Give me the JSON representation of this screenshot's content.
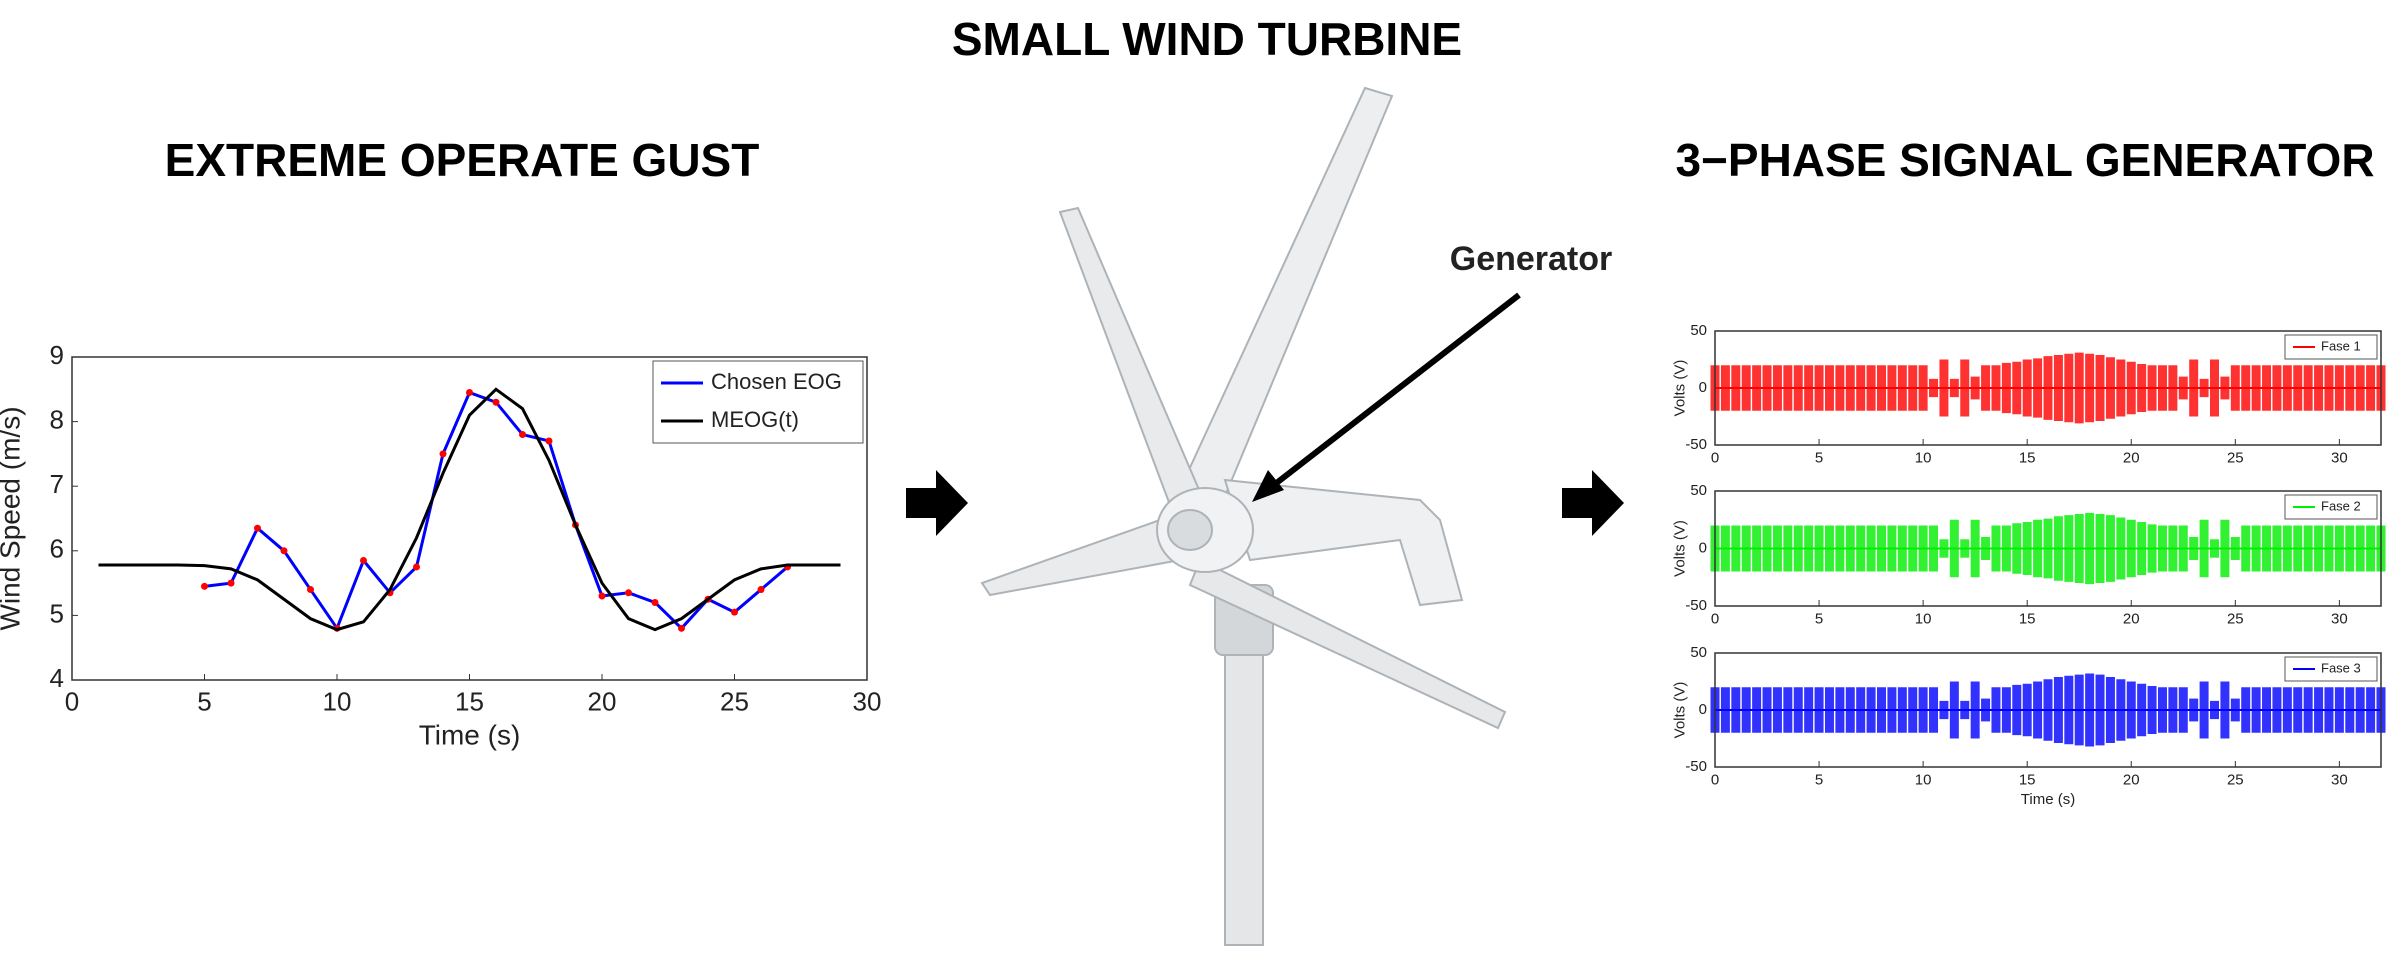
{
  "title": "SMALL WIND TURBINE",
  "left_heading": "EXTREME OPERATE GUST",
  "right_heading": "3−PHASE SIGNAL GENERATOR",
  "generator_label": "Generator",
  "chart_data": [
    {
      "type": "line",
      "xlabel": "Time (s)",
      "ylabel": "Wind Speed (m/s)",
      "xlim": [
        0,
        30
      ],
      "xticks": [
        0,
        5,
        10,
        15,
        20,
        25,
        30
      ],
      "ylim": [
        4,
        9
      ],
      "yticks": [
        4,
        5,
        6,
        7,
        8,
        9
      ],
      "legend": "upper right",
      "series": [
        {
          "name": "Chosen EOG",
          "color": "#0000ff",
          "marker_color": "#ff0000",
          "x": [
            5,
            6,
            7,
            8,
            9,
            10,
            11,
            12,
            13,
            14,
            15,
            16,
            17,
            18,
            19,
            20,
            21,
            22,
            23,
            24,
            25,
            26,
            27
          ],
          "values": [
            5.45,
            5.5,
            6.35,
            6.0,
            5.4,
            4.8,
            5.85,
            5.35,
            5.75,
            7.5,
            8.45,
            8.3,
            7.8,
            7.7,
            6.4,
            5.3,
            5.35,
            5.2,
            4.8,
            5.25,
            5.05,
            5.4,
            5.75
          ]
        },
        {
          "name": "MEOG(t)",
          "color": "#000000",
          "x": [
            1,
            2,
            3,
            4,
            5,
            6,
            7,
            8,
            9,
            10,
            11,
            12,
            13,
            14,
            15,
            16,
            17,
            18,
            19,
            20,
            21,
            22,
            23,
            24,
            25,
            26,
            27,
            28,
            29
          ],
          "values": [
            5.78,
            5.78,
            5.78,
            5.78,
            5.77,
            5.72,
            5.55,
            5.25,
            4.95,
            4.78,
            4.9,
            5.4,
            6.2,
            7.2,
            8.1,
            8.5,
            8.2,
            7.4,
            6.4,
            5.5,
            4.95,
            4.78,
            4.95,
            5.25,
            5.55,
            5.72,
            5.78,
            5.78,
            5.78
          ]
        }
      ]
    },
    {
      "type": "envelope",
      "ylabel": "Volts (V)",
      "xlim": [
        0,
        32
      ],
      "xticks": [
        0,
        5,
        10,
        15,
        20,
        25,
        30
      ],
      "ylim": [
        -50,
        50
      ],
      "yticks": [
        -50,
        0,
        50
      ],
      "legend": "upper right",
      "x": [
        0,
        0.5,
        1,
        1.5,
        2,
        2.5,
        3,
        3.5,
        4,
        4.5,
        5,
        5.5,
        6,
        6.5,
        7,
        7.5,
        8,
        8.5,
        9,
        9.5,
        10,
        10.5,
        11,
        11.5,
        12,
        12.5,
        13,
        13.5,
        14,
        14.5,
        15,
        15.5,
        16,
        16.5,
        17,
        17.5,
        18,
        18.5,
        19,
        19.5,
        20,
        20.5,
        21,
        21.5,
        22,
        22.5,
        23,
        23.5,
        24,
        24.5,
        25,
        25.5,
        26,
        26.5,
        27,
        27.5,
        28,
        28.5,
        29,
        29.5,
        30,
        30.5,
        31,
        31.5,
        32
      ],
      "series": [
        {
          "name": "Fase 1",
          "color": "#ff0000",
          "values": [
            20,
            20,
            20,
            20,
            20,
            20,
            20,
            20,
            20,
            20,
            20,
            20,
            20,
            20,
            20,
            20,
            20,
            20,
            20,
            20,
            20,
            8,
            25,
            8,
            25,
            10,
            20,
            20,
            22,
            23,
            25,
            26,
            28,
            29,
            30,
            31,
            30,
            29,
            27,
            25,
            23,
            21,
            20,
            20,
            20,
            10,
            25,
            8,
            25,
            10,
            20,
            20,
            20,
            20,
            20,
            20,
            20,
            20,
            20,
            20,
            20,
            20,
            20,
            20,
            20
          ]
        }
      ]
    },
    {
      "type": "envelope",
      "ylabel": "Volts (V)",
      "xlim": [
        0,
        32
      ],
      "xticks": [
        0,
        5,
        10,
        15,
        20,
        25,
        30
      ],
      "ylim": [
        -50,
        50
      ],
      "yticks": [
        -50,
        0,
        50
      ],
      "legend": "upper right",
      "x": [
        0,
        0.5,
        1,
        1.5,
        2,
        2.5,
        3,
        3.5,
        4,
        4.5,
        5,
        5.5,
        6,
        6.5,
        7,
        7.5,
        8,
        8.5,
        9,
        9.5,
        10,
        10.5,
        11,
        11.5,
        12,
        12.5,
        13,
        13.5,
        14,
        14.5,
        15,
        15.5,
        16,
        16.5,
        17,
        17.5,
        18,
        18.5,
        19,
        19.5,
        20,
        20.5,
        21,
        21.5,
        22,
        22.5,
        23,
        23.5,
        24,
        24.5,
        25,
        25.5,
        26,
        26.5,
        27,
        27.5,
        28,
        28.5,
        29,
        29.5,
        30,
        30.5,
        31,
        31.5,
        32
      ],
      "series": [
        {
          "name": "Fase 2",
          "color": "#00ee00",
          "values": [
            20,
            20,
            20,
            20,
            20,
            20,
            20,
            20,
            20,
            20,
            20,
            20,
            20,
            20,
            20,
            20,
            20,
            20,
            20,
            20,
            20,
            20,
            8,
            25,
            8,
            25,
            10,
            20,
            20,
            22,
            23,
            25,
            26,
            28,
            29,
            30,
            31,
            30,
            29,
            27,
            25,
            23,
            21,
            20,
            20,
            20,
            10,
            25,
            8,
            25,
            10,
            20,
            20,
            20,
            20,
            20,
            20,
            20,
            20,
            20,
            20,
            20,
            20,
            20,
            20
          ]
        }
      ]
    },
    {
      "type": "envelope",
      "xlabel": "Time (s)",
      "ylabel": "Volts (V)",
      "xlim": [
        0,
        32
      ],
      "xticks": [
        0,
        5,
        10,
        15,
        20,
        25,
        30
      ],
      "ylim": [
        -50,
        50
      ],
      "yticks": [
        -50,
        0,
        50
      ],
      "legend": "upper right",
      "x": [
        0,
        0.5,
        1,
        1.5,
        2,
        2.5,
        3,
        3.5,
        4,
        4.5,
        5,
        5.5,
        6,
        6.5,
        7,
        7.5,
        8,
        8.5,
        9,
        9.5,
        10,
        10.5,
        11,
        11.5,
        12,
        12.5,
        13,
        13.5,
        14,
        14.5,
        15,
        15.5,
        16,
        16.5,
        17,
        17.5,
        18,
        18.5,
        19,
        19.5,
        20,
        20.5,
        21,
        21.5,
        22,
        22.5,
        23,
        23.5,
        24,
        24.5,
        25,
        25.5,
        26,
        26.5,
        27,
        27.5,
        28,
        28.5,
        29,
        29.5,
        30,
        30.5,
        31,
        31.5,
        32
      ],
      "series": [
        {
          "name": "Fase 3",
          "color": "#0000ff",
          "values": [
            20,
            20,
            20,
            20,
            20,
            20,
            20,
            20,
            20,
            20,
            20,
            20,
            20,
            20,
            20,
            20,
            20,
            20,
            20,
            20,
            20,
            20,
            8,
            25,
            8,
            25,
            10,
            20,
            20,
            22,
            23,
            25,
            27,
            29,
            30,
            31,
            32,
            31,
            29,
            27,
            25,
            23,
            21,
            20,
            20,
            20,
            10,
            25,
            8,
            25,
            10,
            20,
            20,
            20,
            20,
            20,
            20,
            20,
            20,
            20,
            20,
            20,
            20,
            20,
            20
          ]
        }
      ]
    }
  ]
}
